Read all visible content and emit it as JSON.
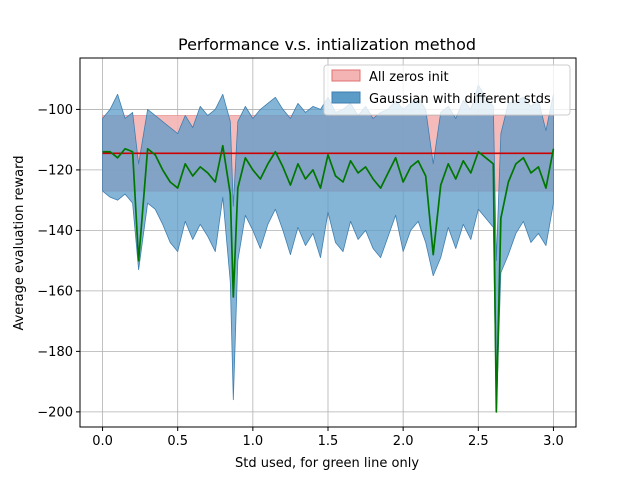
{
  "chart_data": {
    "type": "line",
    "title": "Performance v.s. intialization method",
    "xlabel": "Std used, for green line only",
    "ylabel": "Average evaluation reward",
    "xlim": [
      -0.15,
      3.15
    ],
    "ylim": [
      -205,
      -83
    ],
    "grid": true,
    "legend_position": "top-right",
    "x_ticks": [
      {
        "value": 0.0,
        "label": "0.0"
      },
      {
        "value": 0.5,
        "label": "0.5"
      },
      {
        "value": 1.0,
        "label": "1.0"
      },
      {
        "value": 1.5,
        "label": "1.5"
      },
      {
        "value": 2.0,
        "label": "2.0"
      },
      {
        "value": 2.5,
        "label": "2.5"
      },
      {
        "value": 3.0,
        "label": "3.0"
      }
    ],
    "y_ticks": [
      {
        "value": -100,
        "label": "−100"
      },
      {
        "value": -120,
        "label": "−120"
      },
      {
        "value": -140,
        "label": "−140"
      },
      {
        "value": -160,
        "label": "−160"
      },
      {
        "value": -180,
        "label": "−180"
      },
      {
        "value": -200,
        "label": "−200"
      }
    ],
    "zeros_band": {
      "name": "All zeros init",
      "x_range": [
        0.0,
        3.0
      ],
      "mean": -114.5,
      "lower": -127,
      "upper": -102,
      "fill_color": "#f4b4b4",
      "mean_color": "#cc0000"
    },
    "gaussian": {
      "name": "Gaussian with different stds",
      "fill_color": "#5b9bc8",
      "line_color": "#007700",
      "x": [
        0.0,
        0.05,
        0.1,
        0.15,
        0.2,
        0.24,
        0.3,
        0.35,
        0.4,
        0.45,
        0.5,
        0.55,
        0.6,
        0.65,
        0.7,
        0.75,
        0.8,
        0.85,
        0.87,
        0.9,
        0.95,
        1.0,
        1.05,
        1.1,
        1.15,
        1.2,
        1.25,
        1.3,
        1.35,
        1.4,
        1.45,
        1.5,
        1.55,
        1.6,
        1.65,
        1.7,
        1.75,
        1.8,
        1.85,
        1.9,
        1.95,
        2.0,
        2.05,
        2.1,
        2.15,
        2.2,
        2.25,
        2.3,
        2.35,
        2.4,
        2.45,
        2.5,
        2.55,
        2.6,
        2.62,
        2.65,
        2.7,
        2.75,
        2.8,
        2.85,
        2.9,
        2.95,
        3.0
      ],
      "mean": [
        -114,
        -114,
        -116,
        -113,
        -114,
        -150,
        -113,
        -115,
        -120,
        -124,
        -126,
        -118,
        -122,
        -119,
        -121,
        -124,
        -112,
        -128,
        -162,
        -126,
        -116,
        -120,
        -123,
        -118,
        -114,
        -119,
        -125,
        -118,
        -123,
        -120,
        -126,
        -115,
        -122,
        -124,
        -117,
        -121,
        -119,
        -123,
        -126,
        -121,
        -116,
        -124,
        -119,
        -117,
        -122,
        -148,
        -125,
        -118,
        -123,
        -117,
        -121,
        -114,
        -116,
        -118,
        -200,
        -136,
        -124,
        -118,
        -116,
        -121,
        -119,
        -126,
        -113
      ],
      "lower": [
        -127,
        -129,
        -130,
        -128,
        -131,
        -153,
        -131,
        -133,
        -138,
        -144,
        -147,
        -137,
        -143,
        -138,
        -142,
        -147,
        -129,
        -157,
        -196,
        -150,
        -135,
        -140,
        -146,
        -138,
        -133,
        -140,
        -148,
        -139,
        -145,
        -141,
        -149,
        -134,
        -144,
        -147,
        -137,
        -143,
        -140,
        -146,
        -149,
        -142,
        -135,
        -147,
        -140,
        -137,
        -144,
        -155,
        -149,
        -139,
        -146,
        -138,
        -143,
        -133,
        -136,
        -139,
        -200,
        -154,
        -148,
        -141,
        -137,
        -144,
        -141,
        -145,
        -131
      ],
      "upper": [
        -103,
        -100,
        -95,
        -103,
        -101,
        -118,
        -100,
        -102,
        -104,
        -106,
        -108,
        -102,
        -106,
        -99,
        -102,
        -100,
        -95,
        -104,
        -132,
        -104,
        -99,
        -103,
        -100,
        -98,
        -96,
        -100,
        -103,
        -98,
        -101,
        -99,
        -100,
        -96,
        -101,
        -100,
        -98,
        -102,
        -99,
        -103,
        -101,
        -100,
        -97,
        -100,
        -98,
        -96,
        -100,
        -118,
        -101,
        -99,
        -103,
        -97,
        -100,
        -92,
        -96,
        -99,
        -150,
        -108,
        -98,
        -97,
        -96,
        -99,
        -97,
        -107,
        -95
      ]
    }
  }
}
